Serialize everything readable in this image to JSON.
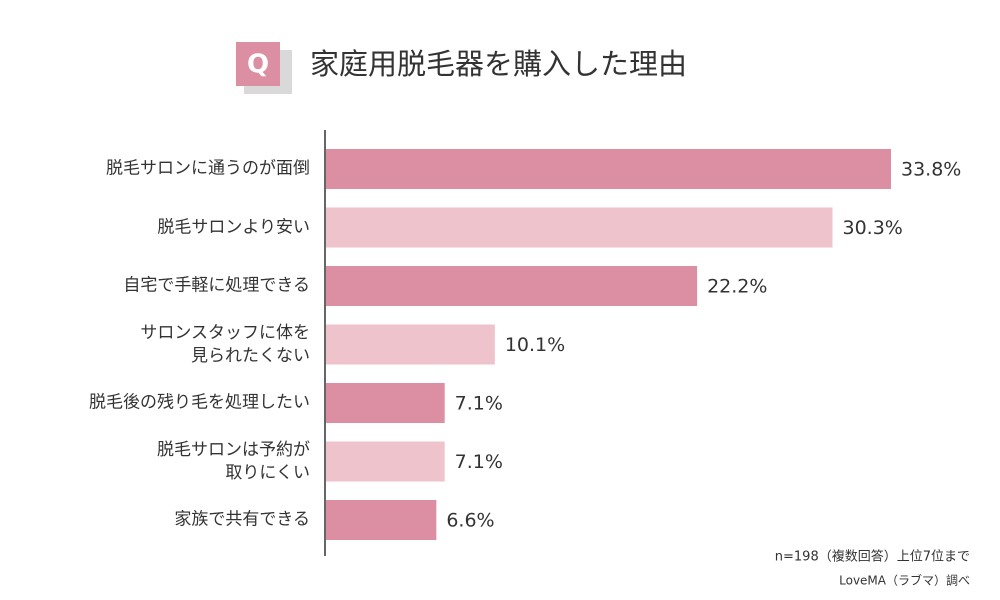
{
  "chart_data": {
    "type": "bar",
    "orientation": "horizontal",
    "badge": "Q",
    "title": "家庭用脱毛器を購入した理由",
    "categories": [
      "脱毛サロンに通うのが面倒",
      "脱毛サロンより安い",
      "自宅で手軽に処理できる",
      "サロンスタッフに体を\n見られたくない",
      "脱毛後の残り毛を処理したい",
      "脱毛サロンは予約が\n取りにくい",
      "家族で共有できる"
    ],
    "values": [
      33.8,
      30.3,
      22.2,
      10.1,
      7.1,
      7.1,
      6.6
    ],
    "value_labels": [
      "33.8%",
      "30.3%",
      "22.2%",
      "10.1%",
      "7.1%",
      "7.1%",
      "6.6%"
    ],
    "colors": [
      "#dc8fa3",
      "#efc3cc",
      "#dc8fa3",
      "#efc3cc",
      "#dc8fa3",
      "#efc3cc",
      "#dc8fa3"
    ],
    "notes": [
      "n=198（複数回答）上位7位まで",
      "LoveMA（ラブマ）調べ"
    ]
  }
}
